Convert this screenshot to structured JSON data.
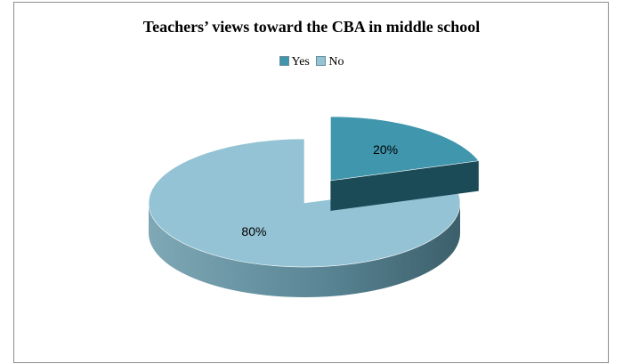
{
  "chart_data": {
    "type": "pie",
    "title": "Teachers’ views toward the CBA in middle school",
    "legend_position": "top",
    "series": [
      {
        "name": "Yes",
        "value": 20,
        "label": "20%",
        "color": "#3f96ad",
        "side_color": "#1b4b57",
        "exploded": true
      },
      {
        "name": "No",
        "value": 80,
        "label": "80%",
        "color": "#93c3d4",
        "side_color": "#4e7d8b",
        "exploded": false
      }
    ]
  }
}
